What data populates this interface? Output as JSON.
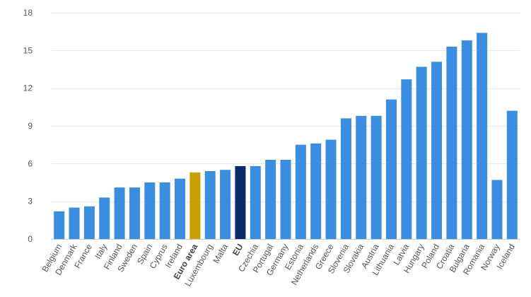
{
  "chart_data": {
    "type": "bar",
    "title": "",
    "xlabel": "",
    "ylabel": "",
    "ylim": [
      0,
      18
    ],
    "yticks": [
      0,
      3,
      6,
      9,
      12,
      15,
      18
    ],
    "grid": true,
    "categories": [
      "Belgium",
      "Denmark",
      "France",
      "Italy",
      "Finland",
      "Sweden",
      "Spain",
      "Cyprus",
      "Ireland",
      "Euro area",
      "Luxembourg",
      "Malta",
      "EU",
      "Czechia",
      "Portugal",
      "Germany",
      "Estonia",
      "Netherlands",
      "Greece",
      "Slovenia",
      "Slovakia",
      "Austria",
      "Lithuania",
      "Latvia",
      "Hungary",
      "Poland",
      "Croatia",
      "Bulgaria",
      "Romania",
      "Norway",
      "Iceland"
    ],
    "values": [
      2.2,
      2.5,
      2.6,
      3.3,
      4.1,
      4.1,
      4.5,
      4.5,
      4.8,
      5.3,
      5.4,
      5.5,
      5.8,
      5.8,
      6.3,
      6.3,
      7.5,
      7.6,
      7.9,
      9.6,
      9.8,
      9.8,
      11.1,
      12.7,
      13.7,
      14.1,
      15.3,
      15.8,
      16.4,
      4.7,
      10.2
    ],
    "highlight": {
      "Euro area": {
        "color": "#c9a000",
        "bold": true
      },
      "EU": {
        "color": "#0b2a6b",
        "bold": true
      }
    },
    "colors": {
      "default_bar": "#3b8de0"
    }
  }
}
